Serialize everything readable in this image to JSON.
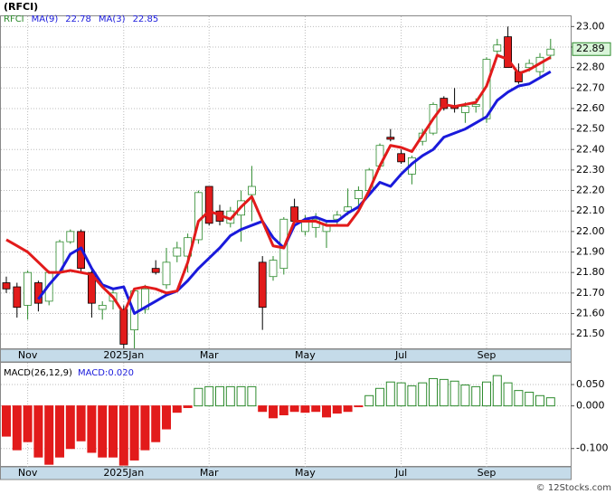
{
  "chart_data": [
    {
      "type": "candlestick",
      "title": "(RFCI)",
      "symbol": "RFCI",
      "categories": [
        null,
        null,
        "Nov",
        null,
        null,
        null,
        null,
        null,
        null,
        null,
        null,
        "2025Jan",
        null,
        null,
        null,
        null,
        null,
        null,
        null,
        "Mar",
        null,
        null,
        null,
        null,
        null,
        null,
        null,
        null,
        "May",
        null,
        null,
        null,
        null,
        null,
        null,
        null,
        null,
        "Jul",
        null,
        null,
        null,
        null,
        null,
        null,
        null,
        "Sep",
        null,
        null,
        null,
        null,
        null,
        null
      ],
      "open": [
        21.75,
        21.73,
        21.64,
        21.75,
        21.66,
        21.8,
        21.95,
        22.0,
        21.8,
        21.62,
        21.66,
        21.62,
        21.52,
        21.62,
        21.82,
        21.74,
        21.88,
        21.88,
        21.96,
        22.22,
        22.1,
        22.04,
        22.08,
        22.18,
        21.85,
        21.78,
        21.82,
        22.12,
        22.0,
        22.02,
        22.0,
        22.06,
        22.1,
        22.16,
        22.2,
        22.32,
        22.46,
        22.38,
        22.28,
        22.44,
        22.48,
        22.65,
        22.61,
        22.58,
        22.61,
        22.55,
        22.88,
        22.95,
        22.78,
        22.8,
        22.78,
        22.86
      ],
      "high": [
        21.78,
        21.75,
        21.81,
        21.76,
        21.81,
        21.96,
        22.01,
        22.01,
        21.82,
        21.66,
        21.72,
        21.64,
        21.72,
        21.74,
        21.86,
        21.92,
        21.95,
        21.99,
        22.2,
        22.22,
        22.13,
        22.12,
        22.2,
        22.32,
        21.88,
        21.88,
        22.07,
        22.16,
        22.08,
        22.09,
        22.05,
        22.1,
        22.21,
        22.22,
        22.31,
        22.43,
        22.5,
        22.4,
        22.37,
        22.5,
        22.63,
        22.66,
        22.7,
        22.63,
        22.65,
        22.85,
        22.94,
        23.0,
        22.82,
        22.84,
        22.87,
        22.94
      ],
      "low": [
        21.7,
        21.58,
        21.57,
        21.61,
        21.64,
        21.79,
        21.94,
        21.8,
        21.58,
        21.57,
        21.62,
        21.43,
        21.43,
        21.6,
        21.79,
        21.72,
        21.85,
        21.8,
        21.94,
        22.03,
        22.03,
        22.02,
        21.95,
        22.05,
        21.52,
        21.76,
        21.79,
        22.04,
        21.98,
        21.97,
        21.92,
        22.03,
        22.08,
        22.1,
        22.18,
        22.3,
        22.44,
        22.33,
        22.23,
        22.42,
        22.47,
        22.59,
        22.58,
        22.53,
        22.58,
        22.53,
        22.86,
        22.8,
        22.72,
        22.78,
        22.75,
        22.84
      ],
      "close": [
        21.72,
        21.63,
        21.8,
        21.65,
        21.8,
        21.95,
        22.0,
        21.82,
        21.65,
        21.64,
        21.7,
        21.45,
        21.71,
        21.72,
        21.8,
        21.85,
        21.92,
        21.97,
        22.19,
        22.04,
        22.05,
        22.1,
        22.15,
        22.22,
        21.63,
        21.86,
        22.06,
        22.05,
        22.05,
        22.06,
        22.03,
        22.08,
        22.12,
        22.2,
        22.3,
        22.42,
        22.45,
        22.34,
        22.36,
        22.48,
        22.62,
        22.6,
        22.6,
        22.61,
        22.62,
        22.84,
        22.91,
        22.8,
        22.73,
        22.82,
        22.85,
        22.89
      ],
      "up_color": "#2e8b2e",
      "down_color": "#e21b1b",
      "series": [
        {
          "name": "MA(9)",
          "last": 22.78,
          "color": "#1a1adb",
          "values": [
            null,
            null,
            null,
            21.67,
            21.74,
            21.8,
            21.89,
            21.92,
            21.82,
            21.74,
            21.72,
            21.73,
            21.6,
            21.63,
            21.66,
            21.69,
            21.71,
            21.76,
            21.82,
            21.87,
            21.92,
            21.98,
            22.01,
            22.03,
            22.05,
            21.97,
            21.92,
            22.03,
            22.06,
            22.07,
            22.05,
            22.05,
            22.09,
            22.12,
            22.18,
            22.24,
            22.22,
            22.28,
            22.33,
            22.37,
            22.4,
            22.46,
            22.48,
            22.5,
            22.53,
            22.56,
            22.64,
            22.68,
            22.71,
            22.72,
            22.75,
            22.78
          ]
        },
        {
          "name": "MA(3)",
          "last": 22.85,
          "color": "#e21b1b",
          "values": [
            21.96,
            21.93,
            21.9,
            21.85,
            21.8,
            21.8,
            21.81,
            21.8,
            21.79,
            21.73,
            21.68,
            21.6,
            21.72,
            21.73,
            21.72,
            21.7,
            21.71,
            21.85,
            22.05,
            22.1,
            22.08,
            22.06,
            22.12,
            22.17,
            22.05,
            21.93,
            21.92,
            22.05,
            22.05,
            22.05,
            22.03,
            22.03,
            22.03,
            22.1,
            22.2,
            22.32,
            22.42,
            22.41,
            22.39,
            22.47,
            22.55,
            22.62,
            22.61,
            22.62,
            22.63,
            22.71,
            22.86,
            22.84,
            22.77,
            22.79,
            22.82,
            22.85
          ]
        }
      ],
      "last_price": 22.89,
      "ylim": [
        21.43,
        23.05
      ],
      "yticks": [
        {
          "value": 21.5,
          "label": "21.50"
        },
        {
          "value": 21.6,
          "label": "21.60"
        },
        {
          "value": 21.7,
          "label": "21.70"
        },
        {
          "value": 21.8,
          "label": "21.80"
        },
        {
          "value": 21.9,
          "label": "21.90"
        },
        {
          "value": 22.0,
          "label": "22.00"
        },
        {
          "value": 22.1,
          "label": "22.10"
        },
        {
          "value": 22.2,
          "label": "22.20"
        },
        {
          "value": 22.3,
          "label": "22.30"
        },
        {
          "value": 22.4,
          "label": "22.40"
        },
        {
          "value": 22.5,
          "label": "22.50"
        },
        {
          "value": 22.6,
          "label": "22.60"
        },
        {
          "value": 22.7,
          "label": "22.70"
        },
        {
          "value": 22.8,
          "label": "22.80"
        },
        {
          "value": 22.9,
          "label": "22.90"
        },
        {
          "value": 23.0,
          "label": "23.00"
        }
      ],
      "grid": true
    },
    {
      "type": "bar",
      "title": "MACD(26,12,9)",
      "legend": "MACD:0.020",
      "categories": [
        null,
        null,
        "Nov",
        null,
        null,
        null,
        null,
        null,
        null,
        null,
        null,
        "2025Jan",
        null,
        null,
        null,
        null,
        null,
        null,
        null,
        "Mar",
        null,
        null,
        null,
        null,
        null,
        null,
        null,
        null,
        "May",
        null,
        null,
        null,
        null,
        null,
        null,
        null,
        null,
        "Jul",
        null,
        null,
        null,
        null,
        null,
        null,
        null,
        "Sep",
        null,
        null,
        null,
        null,
        null,
        null
      ],
      "values": [
        -0.071,
        -0.103,
        -0.084,
        -0.12,
        -0.137,
        -0.12,
        -0.1,
        -0.082,
        -0.109,
        -0.12,
        -0.12,
        -0.139,
        -0.127,
        -0.103,
        -0.084,
        -0.054,
        -0.015,
        -0.004,
        0.041,
        0.045,
        0.045,
        0.045,
        0.045,
        0.045,
        -0.013,
        -0.028,
        -0.021,
        -0.013,
        -0.015,
        -0.013,
        -0.026,
        -0.017,
        -0.013,
        -0.002,
        0.024,
        0.041,
        0.056,
        0.054,
        0.047,
        0.054,
        0.064,
        0.062,
        0.058,
        0.049,
        0.045,
        0.056,
        0.071,
        0.054,
        0.036,
        0.032,
        0.024,
        0.019
      ],
      "pos_color": "#2e8b2e",
      "neg_color": "#e21b1b",
      "ylim": [
        -0.143,
        0.101
      ],
      "yticks": [
        {
          "value": 0.05,
          "label": "0.050"
        },
        {
          "value": 0,
          "label": "0.000"
        },
        {
          "value": -0.1,
          "label": "-0.100"
        }
      ],
      "grid": true
    }
  ],
  "footer": "© 12Stocks.com"
}
